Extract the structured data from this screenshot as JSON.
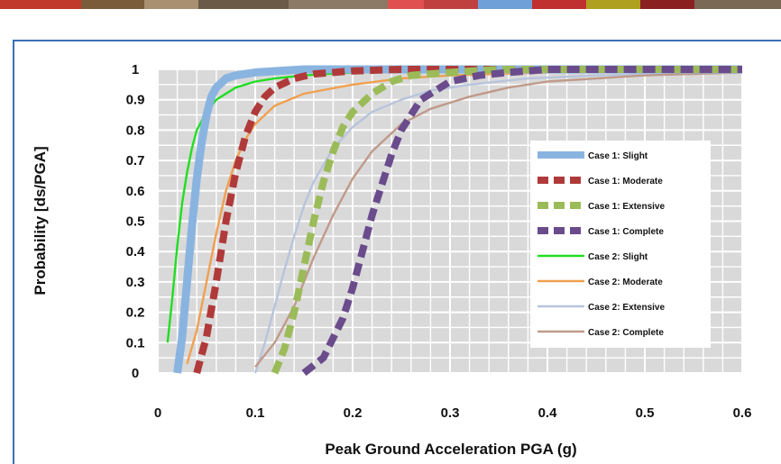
{
  "chart_data": {
    "type": "line",
    "title": "",
    "xlabel": "Peak Ground Acceleration PGA (g)",
    "ylabel": "Probability [ds/PGA]",
    "xlim": [
      0,
      0.6
    ],
    "ylim": [
      0,
      1
    ],
    "x_ticks": [
      "0",
      "0.1",
      "0.2",
      "0.3",
      "0.4",
      "0.5",
      "0.6"
    ],
    "y_ticks": [
      "0",
      "0.1",
      "0.2",
      "0.3",
      "0.4",
      "0.5",
      "0.6",
      "0.7",
      "0.8",
      "0.9",
      "1"
    ],
    "grid": true,
    "legend_position": "right",
    "series": [
      {
        "name": "Case 1: Slight",
        "color": "#8ab4e0",
        "style": "solid-thick",
        "x": [
          0.02,
          0.025,
          0.03,
          0.035,
          0.04,
          0.045,
          0.05,
          0.055,
          0.06,
          0.07,
          0.08,
          0.1,
          0.15,
          0.2,
          0.3,
          0.6
        ],
        "y": [
          0,
          0.12,
          0.3,
          0.48,
          0.64,
          0.76,
          0.85,
          0.91,
          0.94,
          0.97,
          0.98,
          0.99,
          1,
          1,
          1,
          1
        ]
      },
      {
        "name": "Case 1: Moderate",
        "color": "#b03a3a",
        "style": "dashed-thick",
        "x": [
          0.04,
          0.05,
          0.06,
          0.07,
          0.08,
          0.09,
          0.1,
          0.11,
          0.12,
          0.14,
          0.16,
          0.2,
          0.25,
          0.3,
          0.6
        ],
        "y": [
          0,
          0.12,
          0.3,
          0.5,
          0.66,
          0.78,
          0.86,
          0.91,
          0.94,
          0.97,
          0.985,
          0.995,
          1,
          1,
          1
        ]
      },
      {
        "name": "Case 1: Extensive",
        "color": "#9bbb59",
        "style": "dashed-thick",
        "x": [
          0.12,
          0.13,
          0.14,
          0.15,
          0.16,
          0.17,
          0.18,
          0.19,
          0.2,
          0.22,
          0.24,
          0.26,
          0.3,
          0.35,
          0.6
        ],
        "y": [
          0,
          0.08,
          0.2,
          0.35,
          0.5,
          0.63,
          0.73,
          0.81,
          0.86,
          0.92,
          0.96,
          0.98,
          0.99,
          1,
          1
        ]
      },
      {
        "name": "Case 1: Complete",
        "color": "#6a4c8c",
        "style": "dashed-thick",
        "x": [
          0.15,
          0.17,
          0.19,
          0.2,
          0.21,
          0.22,
          0.23,
          0.24,
          0.25,
          0.27,
          0.3,
          0.33,
          0.36,
          0.4,
          0.6
        ],
        "y": [
          0,
          0.05,
          0.18,
          0.28,
          0.4,
          0.52,
          0.62,
          0.72,
          0.8,
          0.9,
          0.96,
          0.98,
          0.99,
          1,
          1
        ]
      },
      {
        "name": "Case 2: Slight",
        "color": "#22dd22",
        "style": "solid",
        "x": [
          0.01,
          0.015,
          0.02,
          0.025,
          0.03,
          0.035,
          0.04,
          0.05,
          0.06,
          0.08,
          0.1,
          0.12,
          0.15,
          0.2,
          0.3,
          0.6
        ],
        "y": [
          0.1,
          0.25,
          0.42,
          0.56,
          0.66,
          0.74,
          0.8,
          0.86,
          0.9,
          0.94,
          0.96,
          0.97,
          0.98,
          0.99,
          1,
          1
        ]
      },
      {
        "name": "Case 2: Moderate",
        "color": "#f0a050",
        "style": "solid",
        "x": [
          0.03,
          0.04,
          0.05,
          0.06,
          0.07,
          0.08,
          0.09,
          0.1,
          0.12,
          0.15,
          0.2,
          0.25,
          0.3,
          0.4,
          0.6
        ],
        "y": [
          0.03,
          0.14,
          0.3,
          0.46,
          0.6,
          0.7,
          0.77,
          0.82,
          0.88,
          0.92,
          0.95,
          0.97,
          0.98,
          0.99,
          1
        ]
      },
      {
        "name": "Case 2: Extensive",
        "color": "#b8c4dc",
        "style": "solid",
        "x": [
          0.1,
          0.11,
          0.12,
          0.13,
          0.14,
          0.15,
          0.16,
          0.18,
          0.2,
          0.22,
          0.25,
          0.28,
          0.32,
          0.38,
          0.45,
          0.6
        ],
        "y": [
          0,
          0.1,
          0.22,
          0.34,
          0.45,
          0.55,
          0.63,
          0.74,
          0.81,
          0.86,
          0.9,
          0.93,
          0.95,
          0.97,
          0.98,
          0.99
        ]
      },
      {
        "name": "Case 2: Complete",
        "color": "#c09a8a",
        "style": "solid",
        "x": [
          0.1,
          0.12,
          0.14,
          0.16,
          0.18,
          0.2,
          0.22,
          0.25,
          0.28,
          0.32,
          0.36,
          0.4,
          0.45,
          0.5,
          0.6
        ],
        "y": [
          0.02,
          0.1,
          0.22,
          0.38,
          0.52,
          0.64,
          0.73,
          0.82,
          0.87,
          0.91,
          0.94,
          0.96,
          0.97,
          0.98,
          0.99
        ]
      }
    ]
  }
}
